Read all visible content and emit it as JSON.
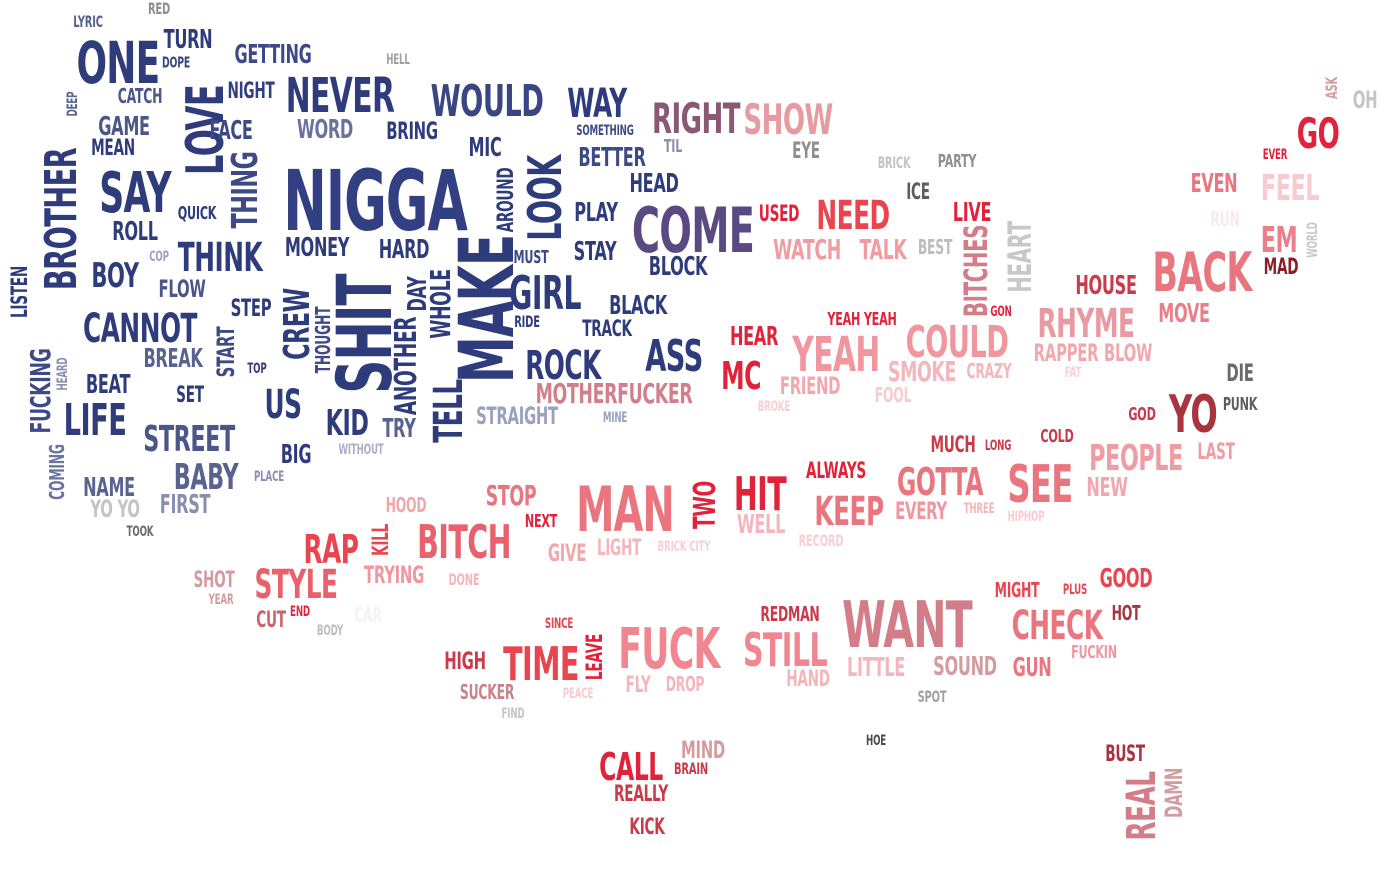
{
  "words": [
    {
      "t": "LYRIC",
      "c": "#56628f"
    },
    {
      "t": "RED",
      "c": "#8d8d8d"
    },
    {
      "t": "ONE",
      "c": "#2f3c7c"
    },
    {
      "t": "TURN",
      "c": "#2f3c7c"
    },
    {
      "t": "DOPE",
      "c": "#3a467f"
    },
    {
      "t": "GETTING",
      "c": "#3d4a86"
    },
    {
      "t": "HELL",
      "c": "#a0a0a0"
    },
    {
      "t": "DEEP",
      "c": "#5a6390"
    },
    {
      "t": "CATCH",
      "c": "#4b5689"
    },
    {
      "t": "NIGHT",
      "c": "#333f80"
    },
    {
      "t": "NEVER",
      "c": "#2f3c7c"
    },
    {
      "t": "WOULD",
      "c": "#3a4683"
    },
    {
      "t": "WAY",
      "c": "#2e3b7c"
    },
    {
      "t": "RIGHT",
      "c": "#8a5874"
    },
    {
      "t": "SHOW",
      "c": "#e89aa2"
    },
    {
      "t": "LOVE",
      "c": "#2f3c7c"
    },
    {
      "t": "GAME",
      "c": "#4b5689"
    },
    {
      "t": "FACE",
      "c": "#3d4a86"
    },
    {
      "t": "WORD",
      "c": "#6a739e"
    },
    {
      "t": "BRING",
      "c": "#2f3c7c"
    },
    {
      "t": "SOMETHING",
      "c": "#3d4a86"
    },
    {
      "t": "TIL",
      "c": "#8a8fb0"
    },
    {
      "t": "EYE",
      "c": "#8f8f8f"
    },
    {
      "t": "MEAN",
      "c": "#2f3c7c"
    },
    {
      "t": "MIC",
      "c": "#2f3c7c"
    },
    {
      "t": "BETTER",
      "c": "#3d4a86"
    },
    {
      "t": "BRICK",
      "c": "#c4c4c4"
    },
    {
      "t": "PARTY",
      "c": "#8f8f8f"
    },
    {
      "t": "BROTHER",
      "c": "#2f3c7c"
    },
    {
      "t": "SAY",
      "c": "#2f3c7c"
    },
    {
      "t": "NIGGA",
      "c": "#323f82"
    },
    {
      "t": "THING",
      "c": "#3d4a86"
    },
    {
      "t": "AROUND",
      "c": "#2f3c7c"
    },
    {
      "t": "LOOK",
      "c": "#2f3c7c"
    },
    {
      "t": "HEAD",
      "c": "#2f3c7c"
    },
    {
      "t": "ICE",
      "c": "#5e5e5e"
    },
    {
      "t": "QUICK",
      "c": "#2f3c7c"
    },
    {
      "t": "COME",
      "c": "#5b4a82"
    },
    {
      "t": "USED",
      "c": "#e0233a"
    },
    {
      "t": "NEED",
      "c": "#e8454f"
    },
    {
      "t": "LIVE",
      "c": "#e0233a"
    },
    {
      "t": "PLAY",
      "c": "#2f3c7c"
    },
    {
      "t": "ROLL",
      "c": "#2f3c7c"
    },
    {
      "t": "WATCH",
      "c": "#ef9ca2"
    },
    {
      "t": "TALK",
      "c": "#ef9ca2"
    },
    {
      "t": "BEST",
      "c": "#bdbdbd"
    },
    {
      "t": "BITCHES",
      "c": "#d27d88"
    },
    {
      "t": "HEART",
      "c": "#c8c8c8"
    },
    {
      "t": "THINK",
      "c": "#2f3c7c"
    },
    {
      "t": "MONEY",
      "c": "#2f3c7c"
    },
    {
      "t": "HARD",
      "c": "#2f3c7c"
    },
    {
      "t": "MUST",
      "c": "#3d4a86"
    },
    {
      "t": "STAY",
      "c": "#2f3c7c"
    },
    {
      "t": "BLOCK",
      "c": "#2f3c7c"
    },
    {
      "t": "COP",
      "c": "#9aa0bf"
    },
    {
      "t": "BOY",
      "c": "#2f3c7c"
    },
    {
      "t": "LISTEN",
      "c": "#2f3c7c"
    },
    {
      "t": "FLOW",
      "c": "#4b5689"
    },
    {
      "t": "SHIT",
      "c": "#2f3c7c"
    },
    {
      "t": "MAKE",
      "c": "#2f3c7c"
    },
    {
      "t": "GIRL",
      "c": "#2f3c7c"
    },
    {
      "t": "DAY",
      "c": "#2f3c7c"
    },
    {
      "t": "WHOLE",
      "c": "#2f3c7c"
    },
    {
      "t": "STEP",
      "c": "#2f3c7c"
    },
    {
      "t": "CREW",
      "c": "#2f3c7c"
    },
    {
      "t": "BLACK",
      "c": "#2f3c7c"
    },
    {
      "t": "HOUSE",
      "c": "#c93a4a"
    },
    {
      "t": "BACK",
      "c": "#e9757f"
    },
    {
      "t": "MOVE",
      "c": "#ea7f89"
    },
    {
      "t": "GON",
      "c": "#e0233a"
    },
    {
      "t": "YEAH YEAH",
      "c": "#e0233a"
    },
    {
      "t": "RHYME",
      "c": "#e89aa2"
    },
    {
      "t": "CANNOT",
      "c": "#2f3c7c"
    },
    {
      "t": "THOUGHT",
      "c": "#3d4a86"
    },
    {
      "t": "RIDE",
      "c": "#2f3c7c"
    },
    {
      "t": "TRACK",
      "c": "#2f3c7c"
    },
    {
      "t": "ASS",
      "c": "#2f3c7c"
    },
    {
      "t": "HEAR",
      "c": "#e0233a"
    },
    {
      "t": "COULD",
      "c": "#f0969e"
    },
    {
      "t": "RAPPER",
      "c": "#f2a7ad"
    },
    {
      "t": "BLOW",
      "c": "#f2a7ad"
    },
    {
      "t": "BREAK",
      "c": "#5a6390"
    },
    {
      "t": "START",
      "c": "#3d4a86"
    },
    {
      "t": "ROCK",
      "c": "#2f3c7c"
    },
    {
      "t": "MC",
      "c": "#e0233a"
    },
    {
      "t": "YEAH",
      "c": "#f0969e"
    },
    {
      "t": "FUCKING",
      "c": "#3d4a86"
    },
    {
      "t": "HEARD",
      "c": "#8a8fb0"
    },
    {
      "t": "TOP",
      "c": "#2f3c7c"
    },
    {
      "t": "ANOTHER",
      "c": "#2f3c7c"
    },
    {
      "t": "TELL",
      "c": "#2f3c7c"
    },
    {
      "t": "MOTHERFUCKER",
      "c": "#d17f8c"
    },
    {
      "t": "FRIEND",
      "c": "#f2a7ad"
    },
    {
      "t": "SMOKE",
      "c": "#f4b6bc"
    },
    {
      "t": "CRAZY",
      "c": "#f4b6bc"
    },
    {
      "t": "FAT",
      "c": "#f8d0d4"
    },
    {
      "t": "DIE",
      "c": "#6a6a6a"
    },
    {
      "t": "BEAT",
      "c": "#2f3c7c"
    },
    {
      "t": "SET",
      "c": "#2f3c7c"
    },
    {
      "t": "US",
      "c": "#2f3c7c"
    },
    {
      "t": "FOOL",
      "c": "#f8cbd0"
    },
    {
      "t": "BROKE",
      "c": "#f8d0d4"
    },
    {
      "t": "GOD",
      "c": "#c93a4a"
    },
    {
      "t": "YO",
      "c": "#a8343f"
    },
    {
      "t": "PUNK",
      "c": "#5e5e5e"
    },
    {
      "t": "LIFE",
      "c": "#2f3c7c"
    },
    {
      "t": "KID",
      "c": "#2f3c7c"
    },
    {
      "t": "TRY",
      "c": "#5a6390"
    },
    {
      "t": "STRAIGHT",
      "c": "#9aa0bf"
    },
    {
      "t": "MINE",
      "c": "#9aa0bf"
    },
    {
      "t": "STREET",
      "c": "#4b5689"
    },
    {
      "t": "MUCH",
      "c": "#c93a4a"
    },
    {
      "t": "LONG",
      "c": "#c93a4a"
    },
    {
      "t": "COLD",
      "c": "#c93a4a"
    },
    {
      "t": "PEOPLE",
      "c": "#ef9ca2"
    },
    {
      "t": "LAST",
      "c": "#ef9ca2"
    },
    {
      "t": "BIG",
      "c": "#2f3c7c"
    },
    {
      "t": "WITHOUT",
      "c": "#a9aec9"
    },
    {
      "t": "COMING",
      "c": "#6a739e"
    },
    {
      "t": "BABY",
      "c": "#5a6390"
    },
    {
      "t": "PLACE",
      "c": "#8a8fb0"
    },
    {
      "t": "ALWAYS",
      "c": "#e0233a"
    },
    {
      "t": "GOTTA",
      "c": "#e9757f"
    },
    {
      "t": "SEE",
      "c": "#e9757f"
    },
    {
      "t": "NEW",
      "c": "#f2a7ad"
    },
    {
      "t": "NAME",
      "c": "#5a6390"
    },
    {
      "t": "FIRST",
      "c": "#8a8fb0"
    },
    {
      "t": "HIT",
      "c": "#e0233a"
    },
    {
      "t": "HOOD",
      "c": "#f2a7ad"
    },
    {
      "t": "STOP",
      "c": "#e9757f"
    },
    {
      "t": "MAN",
      "c": "#e9757f"
    },
    {
      "t": "TWO",
      "c": "#e0233a"
    },
    {
      "t": "KEEP",
      "c": "#e9757f"
    },
    {
      "t": "EVERY",
      "c": "#f0969e"
    },
    {
      "t": "THREE",
      "c": "#f4b6bc"
    },
    {
      "t": "HIPHOP",
      "c": "#f8cbd0"
    },
    {
      "t": "YO YO",
      "c": "#c4c4c4"
    },
    {
      "t": "TOOK",
      "c": "#6a6a6a"
    },
    {
      "t": "NEXT",
      "c": "#e0233a"
    },
    {
      "t": "WELL",
      "c": "#f4b6bc"
    },
    {
      "t": "RECORD",
      "c": "#f8d0d4"
    },
    {
      "t": "RAP",
      "c": "#e8454f"
    },
    {
      "t": "KILL",
      "c": "#e8454f"
    },
    {
      "t": "BITCH",
      "c": "#e8616c"
    },
    {
      "t": "GIVE",
      "c": "#f2a7ad"
    },
    {
      "t": "LIGHT",
      "c": "#f4b6bc"
    },
    {
      "t": "BRICK CITY",
      "c": "#f8d0d4"
    },
    {
      "t": "SHOT",
      "c": "#d49ca0"
    },
    {
      "t": "YEAR",
      "c": "#d49ca0"
    },
    {
      "t": "STYLE",
      "c": "#e8616c"
    },
    {
      "t": "TRYING",
      "c": "#f0969e"
    },
    {
      "t": "DONE",
      "c": "#f4b6bc"
    },
    {
      "t": "CUT",
      "c": "#c9646e"
    },
    {
      "t": "END",
      "c": "#e0233a"
    },
    {
      "t": "CAR",
      "c": "#f3f3f3"
    },
    {
      "t": "BODY",
      "c": "#bdbdbd"
    },
    {
      "t": "MIGHT",
      "c": "#e8454f"
    },
    {
      "t": "PLUS",
      "c": "#e8454f"
    },
    {
      "t": "GOOD",
      "c": "#e8454f"
    },
    {
      "t": "HOT",
      "c": "#a8343f"
    },
    {
      "t": "REDMAN",
      "c": "#c93a4a"
    },
    {
      "t": "WANT",
      "c": "#d27d88"
    },
    {
      "t": "CHECK",
      "c": "#e9757f"
    },
    {
      "t": "FUCKIN",
      "c": "#f0969e"
    },
    {
      "t": "SINCE",
      "c": "#e8454f"
    },
    {
      "t": "LEAVE",
      "c": "#e0233a"
    },
    {
      "t": "FUCK",
      "c": "#ef8690"
    },
    {
      "t": "STILL",
      "c": "#ef8690"
    },
    {
      "t": "HIGH",
      "c": "#c93a4a"
    },
    {
      "t": "TIME",
      "c": "#e8454f"
    },
    {
      "t": "LITTLE",
      "c": "#f4b6bc"
    },
    {
      "t": "SOUND",
      "c": "#d49ca0"
    },
    {
      "t": "GUN",
      "c": "#e9757f"
    },
    {
      "t": "FLY",
      "c": "#f4b6bc"
    },
    {
      "t": "DROP",
      "c": "#f4b6bc"
    },
    {
      "t": "HAND",
      "c": "#f4b6bc"
    },
    {
      "t": "SUCKER",
      "c": "#c9848b"
    },
    {
      "t": "PEACE",
      "c": "#f8cbd0"
    },
    {
      "t": "FIND",
      "c": "#c4c4c4"
    },
    {
      "t": "SPOT",
      "c": "#a0a0a0"
    },
    {
      "t": "HOE",
      "c": "#4a4a4a"
    },
    {
      "t": "MIND",
      "c": "#d49ca0"
    },
    {
      "t": "CALL",
      "c": "#e0233a"
    },
    {
      "t": "BRAIN",
      "c": "#c93a4a"
    },
    {
      "t": "REALLY",
      "c": "#c93a4a"
    },
    {
      "t": "KICK",
      "c": "#c93a4a"
    },
    {
      "t": "BUST",
      "c": "#a8343f"
    },
    {
      "t": "REAL",
      "c": "#d27d88"
    },
    {
      "t": "DAMN",
      "c": "#d49ca0"
    },
    {
      "t": "ASK",
      "c": "#d49ca0"
    },
    {
      "t": "OH",
      "c": "#c4c4c4"
    },
    {
      "t": "GO",
      "c": "#e0233a"
    },
    {
      "t": "EVER",
      "c": "#e0233a"
    },
    {
      "t": "EVEN",
      "c": "#e9757f"
    },
    {
      "t": "FEEL",
      "c": "#f8cbd0"
    },
    {
      "t": "RUN",
      "c": "#fbe9ea"
    },
    {
      "t": "EM",
      "c": "#ea7f89"
    },
    {
      "t": "MAD",
      "c": "#8b1f26"
    },
    {
      "t": "WORLD",
      "c": "#c8c8c8"
    }
  ]
}
